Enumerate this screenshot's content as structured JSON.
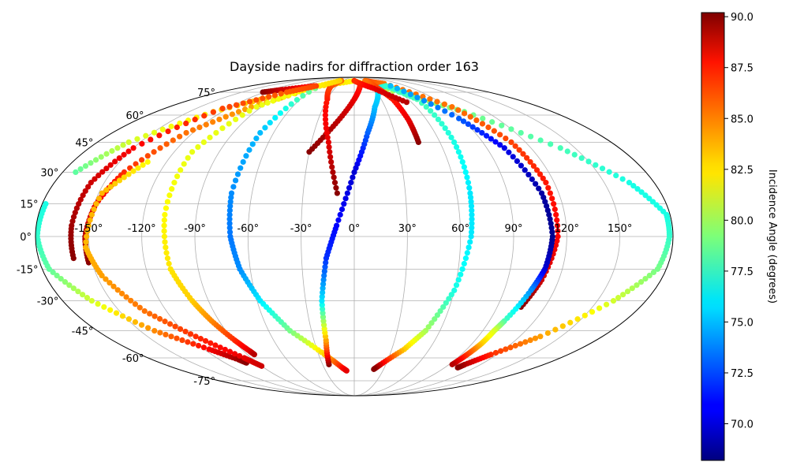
{
  "chart_data": {
    "type": "scatter",
    "projection": "mollweide",
    "title": "Dayside nadirs for diffraction order 163",
    "grid": true,
    "x_ticks": [
      "-150°",
      "-120°",
      "-90°",
      "-60°",
      "-30°",
      "0°",
      "30°",
      "60°",
      "90°",
      "120°",
      "150°"
    ],
    "y_ticks": [
      "75°",
      "60°",
      "45°",
      "30°",
      "15°",
      "0°",
      "-15°",
      "-30°",
      "-45°",
      "-60°",
      "-75°"
    ],
    "colorbar": {
      "label": "Incidence Angle (degrees)",
      "colormap": "jet",
      "vmin": 68.2,
      "vmax": 90.2,
      "ticks": [
        "70.0",
        "72.5",
        "75.0",
        "77.5",
        "80.0",
        "82.5",
        "85.0",
        "87.5",
        "90.0"
      ]
    },
    "series": [
      {
        "points": [
          [
            -152,
            -12,
            90
          ],
          [
            -152,
            0,
            89
          ],
          [
            -149,
            15,
            88
          ],
          [
            -142,
            30,
            86.5
          ],
          [
            -125,
            50,
            85
          ],
          [
            -100,
            65,
            84
          ],
          [
            -60,
            80,
            83
          ],
          [
            0,
            85,
            82
          ],
          [
            60,
            75,
            80
          ],
          [
            100,
            62,
            79
          ],
          [
            140,
            42,
            78
          ],
          [
            165,
            25,
            77
          ],
          [
            178,
            10,
            77
          ],
          [
            178,
            0,
            77.5
          ],
          [
            175,
            -15,
            79
          ],
          [
            160,
            -30,
            81
          ],
          [
            135,
            -48,
            84
          ],
          [
            115,
            -58,
            86.5
          ],
          [
            105,
            -64,
            89
          ],
          [
            103,
            -66,
            90
          ]
        ]
      },
      {
        "points": [
          [
            -178,
            15,
            77
          ],
          [
            -179,
            0,
            77.5
          ],
          [
            -176,
            -15,
            78.5
          ],
          [
            -162,
            -30,
            81
          ],
          [
            -140,
            -45,
            84.5
          ],
          [
            -116,
            -55,
            87.5
          ],
          [
            -103,
            -61,
            89.5
          ],
          [
            -100,
            -63,
            90
          ]
        ]
      },
      {
        "points": [
          [
            -172,
            30,
            78.5
          ],
          [
            -158,
            45,
            81
          ],
          [
            -128,
            62,
            82.5
          ],
          [
            -88,
            75,
            84
          ]
        ]
      },
      {
        "points": [
          [
            -122,
            75,
            90
          ],
          [
            -105,
            77,
            88.5
          ],
          [
            -70,
            80,
            87
          ]
        ]
      },
      {
        "points": [
          [
            -132,
            35,
            82
          ],
          [
            -148,
            20,
            83.5
          ],
          [
            -152,
            -5,
            83.5
          ],
          [
            -147,
            -18,
            84
          ],
          [
            -134,
            -35,
            85
          ],
          [
            -115,
            -48,
            86.5
          ],
          [
            -96,
            -60,
            88
          ],
          [
            -90,
            -65,
            88.5
          ]
        ]
      },
      {
        "points": [
          [
            -30,
            40,
            90
          ],
          [
            -15,
            55,
            89
          ],
          [
            0,
            70,
            88
          ],
          [
            10,
            80,
            87
          ],
          [
            30,
            85,
            86
          ],
          [
            60,
            82,
            85
          ],
          [
            95,
            65,
            85
          ],
          [
            110,
            45,
            86
          ],
          [
            115,
            25,
            87
          ],
          [
            115,
            0,
            87.5
          ],
          [
            110,
            -20,
            88.5
          ],
          [
            105,
            -33,
            90
          ]
        ]
      },
      {
        "points": [
          [
            -10,
            20,
            90
          ],
          [
            -18,
            45,
            88
          ],
          [
            -30,
            70,
            87
          ],
          [
            -40,
            80,
            86
          ],
          [
            -35,
            85,
            85
          ]
        ]
      },
      {
        "points": [
          [
            -40,
            85,
            83
          ],
          [
            -70,
            78,
            82
          ],
          [
            -95,
            65,
            81.5
          ],
          [
            -108,
            40,
            81.5
          ],
          [
            -108,
            10,
            82
          ],
          [
            -106,
            -15,
            82.5
          ],
          [
            -100,
            -30,
            83
          ],
          [
            -95,
            -40,
            84.5
          ],
          [
            -89,
            -50,
            86.5
          ],
          [
            -85,
            -56,
            88
          ],
          [
            -84,
            -58,
            89
          ]
        ]
      },
      {
        "points": [
          [
            -60,
            78,
            79
          ],
          [
            -70,
            50,
            75
          ],
          [
            -72,
            20,
            74
          ],
          [
            -70,
            0,
            73.5
          ],
          [
            -66,
            -15,
            74
          ],
          [
            -58,
            -30,
            76
          ],
          [
            -45,
            -45,
            79
          ],
          [
            -25,
            -58,
            83
          ],
          [
            -12,
            -66,
            87
          ],
          [
            -8,
            -68,
            88
          ]
        ]
      },
      {
        "points": [
          [
            -24,
            -64,
            90
          ],
          [
            -21,
            -50,
            84
          ],
          [
            -20,
            -30,
            76
          ],
          [
            -16,
            -10,
            72
          ],
          [
            -10,
            5,
            71
          ],
          [
            0,
            30,
            70
          ],
          [
            10,
            50,
            73
          ],
          [
            20,
            65,
            75
          ],
          [
            35,
            78,
            76
          ],
          [
            55,
            80,
            77.5
          ],
          [
            70,
            70,
            78
          ],
          [
            70,
            45,
            77
          ],
          [
            68,
            20,
            76
          ],
          [
            66,
            0,
            76
          ],
          [
            60,
            -25,
            77
          ],
          [
            50,
            -45,
            80
          ],
          [
            40,
            -55,
            83
          ],
          [
            25,
            -64,
            88
          ],
          [
            20,
            -67,
            90
          ]
        ]
      },
      {
        "points": [
          [
            45,
            45,
            90
          ],
          [
            45,
            57,
            88
          ],
          [
            43,
            70,
            87
          ],
          [
            35,
            80,
            86
          ],
          [
            30,
            85,
            85
          ]
        ]
      },
      {
        "points": [
          [
            55,
            68,
            89
          ],
          [
            30,
            78,
            88
          ],
          [
            0,
            85,
            86.5
          ]
        ]
      },
      {
        "points": [
          [
            63,
            80,
            75
          ],
          [
            88,
            58,
            73
          ],
          [
            102,
            42,
            70.5
          ],
          [
            110,
            20,
            69
          ],
          [
            112,
            0,
            68.5
          ],
          [
            110,
            -15,
            70
          ],
          [
            106,
            -25,
            74
          ],
          [
            100,
            -40,
            78
          ],
          [
            98,
            -45,
            81
          ],
          [
            97,
            -52,
            83
          ],
          [
            95,
            -58,
            86
          ],
          [
            93,
            -64,
            89
          ]
        ]
      },
      {
        "points": [
          [
            -66,
            80,
            86
          ],
          [
            -90,
            75,
            85.5
          ],
          [
            -125,
            64,
            86
          ],
          [
            -150,
            42,
            87.5
          ],
          [
            -158,
            25,
            88.5
          ],
          [
            -160,
            5,
            89.5
          ],
          [
            -160,
            -10,
            90
          ]
        ]
      }
    ]
  }
}
